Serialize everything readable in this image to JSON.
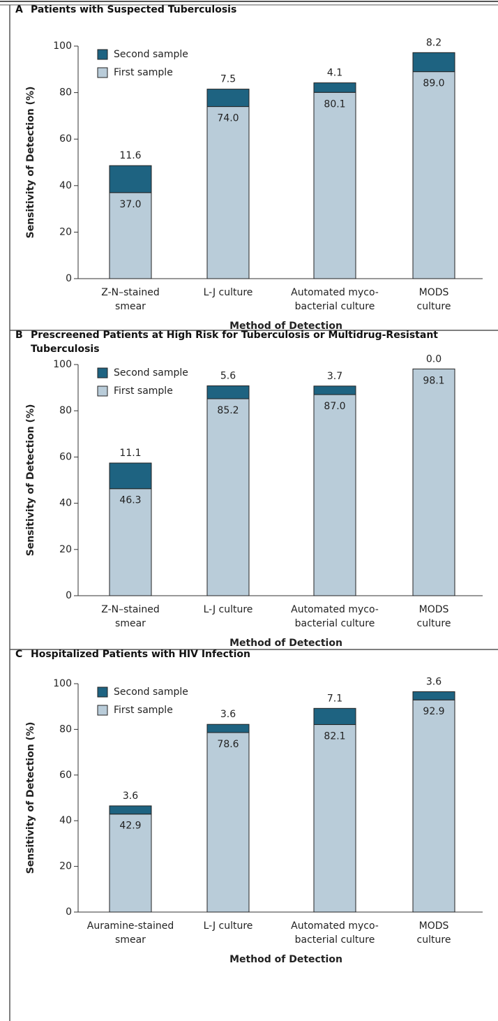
{
  "chart_data": [
    {
      "type": "stacked_bar",
      "panel": "A",
      "title": "Patients with Suspected Tuberculosis",
      "categories": [
        [
          "Z-N–stained",
          "smear"
        ],
        [
          "L-J culture"
        ],
        [
          "Automated myco-",
          "bacterial culture"
        ],
        [
          "MODS",
          "culture"
        ]
      ],
      "series": [
        {
          "name": "First sample",
          "color": "#b9ccd9",
          "values": [
            37,
            74,
            80.1,
            89
          ],
          "value_labels": [
            "37.0",
            "74.0",
            "80.1",
            "89.0"
          ]
        },
        {
          "name": "Second sample",
          "color": "#1e6381",
          "values": [
            11.6,
            7.5,
            4.1,
            8.2
          ],
          "value_labels": [
            "11.6",
            "7.5",
            "4.1",
            "8.2"
          ]
        }
      ],
      "ylim": [
        0,
        100
      ],
      "yticks": [
        0,
        20,
        40,
        60,
        80,
        100
      ],
      "y_label": "Sensitivity of Detection (%)",
      "x_label": "Method of Detection"
    },
    {
      "type": "stacked_bar",
      "panel": "B",
      "title": "Prescreened Patients at High Risk for Tuberculosis or Multidrug-Resistant Tuberculosis",
      "categories": [
        [
          "Z-N–stained",
          "smear"
        ],
        [
          "L-J culture"
        ],
        [
          "Automated myco-",
          "bacterial culture"
        ],
        [
          "MODS",
          "culture"
        ]
      ],
      "series": [
        {
          "name": "First sample",
          "color": "#b9ccd9",
          "values": [
            46.3,
            85.2,
            87,
            98.1
          ],
          "value_labels": [
            "46.3",
            "85.2",
            "87.0",
            "98.1"
          ]
        },
        {
          "name": "Second sample",
          "color": "#1e6381",
          "values": [
            11.1,
            5.6,
            3.7,
            0
          ],
          "value_labels": [
            "11.1",
            "5.6",
            "3.7",
            "0.0"
          ]
        }
      ],
      "ylim": [
        0,
        100
      ],
      "yticks": [
        0,
        20,
        40,
        60,
        80,
        100
      ],
      "y_label": "Sensitivity of Detection (%)",
      "x_label": "Method of Detection"
    },
    {
      "type": "stacked_bar",
      "panel": "C",
      "title": "Hospitalized Patients with HIV Infection",
      "categories": [
        [
          "Auramine-stained",
          "smear"
        ],
        [
          "L-J culture"
        ],
        [
          "Automated myco-",
          "bacterial culture"
        ],
        [
          "MODS",
          "culture"
        ]
      ],
      "series": [
        {
          "name": "First sample",
          "color": "#b9ccd9",
          "values": [
            42.9,
            78.6,
            82.1,
            92.9
          ],
          "value_labels": [
            "42.9",
            "78.6",
            "82.1",
            "92.9"
          ]
        },
        {
          "name": "Second sample",
          "color": "#1e6381",
          "values": [
            3.6,
            3.6,
            7.1,
            3.6
          ],
          "value_labels": [
            "3.6",
            "3.6",
            "7.1",
            "3.6"
          ]
        }
      ],
      "ylim": [
        0,
        100
      ],
      "yticks": [
        0,
        20,
        40,
        60,
        80,
        100
      ],
      "y_label": "Sensitivity of Detection (%)",
      "x_label": "Method of Detection"
    }
  ]
}
